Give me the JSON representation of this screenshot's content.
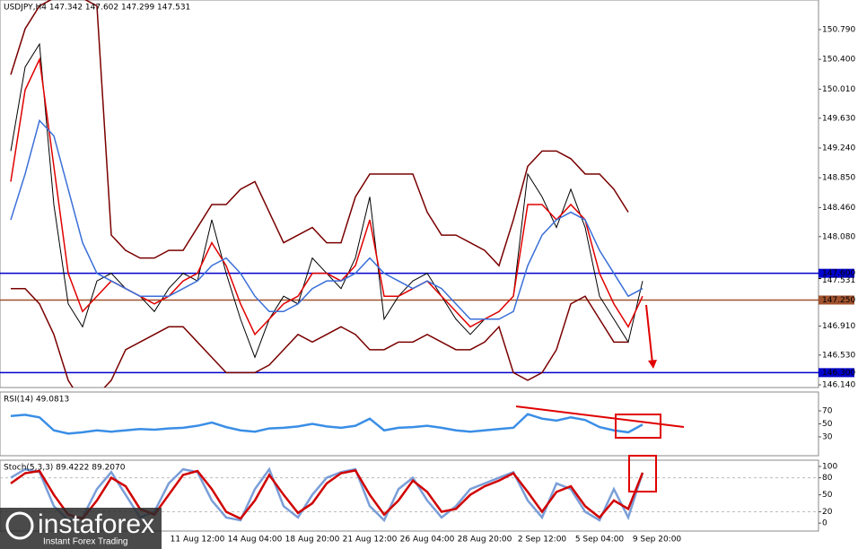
{
  "chart_data": [
    {
      "type": "line",
      "title": "USDJPY,H4  147.342 147.602 147.299 147.531",
      "categories": [
        null,
        null,
        null,
        null,
        null,
        null,
        null,
        null,
        null,
        null,
        null,
        null,
        null,
        "11 Aug 12:00",
        null,
        null,
        null,
        "14 Aug 04:00",
        null,
        null,
        null,
        "18 Aug 20:00",
        null,
        null,
        null,
        "21 Aug 12:00",
        null,
        null,
        null,
        "26 Aug 04:00",
        null,
        null,
        null,
        "28 Aug 20:00",
        null,
        null,
        null,
        "2 Sep 12:00",
        null,
        null,
        null,
        "5 Sep 04:00",
        null,
        null,
        null,
        "9 Sep 20:00"
      ],
      "series": [
        {
          "color": "#000000",
          "values": [
            149.2,
            150.3,
            150.6,
            148.5,
            147.2,
            146.9,
            147.5,
            147.6,
            147.4,
            147.3,
            147.1,
            147.4,
            147.6,
            147.5,
            148.3,
            147.6,
            147.0,
            146.5,
            147.0,
            147.3,
            147.2,
            147.8,
            147.6,
            147.4,
            147.8,
            148.6,
            147.0,
            147.3,
            147.5,
            147.6,
            147.3,
            147.0,
            146.8,
            147.0,
            147.1,
            147.3,
            148.9,
            148.6,
            148.2,
            148.7,
            148.2,
            147.3,
            147.0,
            146.7,
            147.5,
            null
          ]
        },
        {
          "color": "#7a0000",
          "values": [
            150.2,
            150.8,
            151.1,
            151.2,
            151.2,
            151.2,
            151.1,
            148.1,
            147.9,
            147.8,
            147.8,
            147.9,
            147.9,
            148.2,
            148.5,
            148.5,
            148.7,
            148.8,
            148.4,
            148.0,
            148.1,
            148.2,
            148.0,
            148.0,
            148.6,
            148.9,
            148.9,
            148.9,
            148.9,
            148.4,
            148.1,
            148.1,
            148.0,
            147.9,
            147.7,
            148.3,
            149.0,
            149.2,
            149.2,
            149.1,
            148.9,
            148.9,
            148.7,
            148.4,
            null,
            null
          ]
        },
        {
          "color": "#7a0000",
          "values": [
            147.4,
            147.4,
            147.2,
            146.8,
            146.2,
            145.9,
            146.0,
            146.2,
            146.6,
            146.7,
            146.8,
            146.9,
            146.9,
            146.7,
            146.5,
            146.3,
            146.3,
            146.3,
            146.4,
            146.6,
            146.8,
            146.7,
            146.8,
            146.9,
            146.8,
            146.6,
            146.6,
            146.7,
            146.7,
            146.8,
            146.7,
            146.6,
            146.6,
            146.7,
            146.9,
            146.3,
            146.2,
            146.3,
            146.6,
            147.2,
            147.3,
            147.0,
            146.7,
            146.7,
            null,
            null
          ]
        },
        {
          "color": "#e00000",
          "values": [
            148.8,
            150.0,
            150.4,
            149.0,
            147.6,
            147.1,
            147.3,
            147.5,
            147.4,
            147.3,
            147.2,
            147.3,
            147.5,
            147.6,
            148.0,
            147.7,
            147.2,
            146.8,
            147.0,
            147.2,
            147.3,
            147.6,
            147.6,
            147.5,
            147.7,
            148.3,
            147.3,
            147.3,
            147.4,
            147.5,
            147.3,
            147.1,
            146.9,
            147.0,
            147.1,
            147.3,
            148.5,
            148.5,
            148.3,
            148.5,
            148.3,
            147.6,
            147.2,
            146.9,
            147.3,
            null
          ]
        },
        {
          "color": "#3a6fd8",
          "values": [
            148.3,
            148.9,
            149.6,
            149.4,
            148.7,
            148.0,
            147.6,
            147.5,
            147.4,
            147.3,
            147.3,
            147.3,
            147.4,
            147.5,
            147.7,
            147.8,
            147.6,
            147.3,
            147.1,
            147.1,
            147.2,
            147.4,
            147.5,
            147.5,
            147.6,
            147.8,
            147.6,
            147.5,
            147.4,
            147.5,
            147.4,
            147.2,
            147.0,
            147.0,
            147.0,
            147.1,
            147.7,
            148.1,
            148.3,
            148.4,
            148.3,
            147.9,
            147.6,
            147.3,
            147.4,
            null
          ]
        }
      ],
      "ylim": [
        146.105,
        151.177
      ],
      "yticks": [
        {
          "value": 150.79,
          "label": "150.790"
        },
        {
          "value": 150.4,
          "label": "150.400"
        },
        {
          "value": 150.01,
          "label": "150.010"
        },
        {
          "value": 149.63,
          "label": "149.630"
        },
        {
          "value": 149.24,
          "label": "149.240"
        },
        {
          "value": 148.85,
          "label": "148.850"
        },
        {
          "value": 148.46,
          "label": "148.460"
        },
        {
          "value": 148.08,
          "label": "148.080"
        },
        {
          "value": 146.91,
          "label": "146.910"
        },
        {
          "value": 146.53,
          "label": "146.530"
        },
        {
          "value": 146.14,
          "label": "146.140"
        }
      ],
      "levels": [
        {
          "value": 147.6,
          "label": "147.600",
          "color": "#0000cc"
        },
        {
          "value": 147.25,
          "label": "147.250",
          "color": "#a0522d"
        },
        {
          "value": 146.3,
          "label": "146.300",
          "color": "#0000cc"
        }
      ],
      "current_price": {
        "value": 147.531,
        "label": "147.531"
      }
    },
    {
      "type": "line",
      "title": "RSI(14) 49.0813",
      "series": [
        {
          "color": "#3a8ee6",
          "values": [
            62,
            64,
            60,
            40,
            35,
            37,
            40,
            38,
            40,
            42,
            41,
            43,
            44,
            47,
            52,
            45,
            40,
            38,
            43,
            44,
            46,
            50,
            46,
            44,
            47,
            58,
            40,
            44,
            45,
            47,
            44,
            40,
            38,
            40,
            42,
            44,
            65,
            58,
            55,
            60,
            56,
            45,
            40,
            37,
            49,
            null
          ]
        }
      ],
      "ylim": [
        1,
        99
      ],
      "yticks": [
        70,
        50,
        30
      ]
    },
    {
      "type": "line",
      "title": "Stoch(5,3,3) 89.4222 89.2070",
      "series": [
        {
          "color": "#7a9ed8",
          "values": [
            80,
            95,
            90,
            30,
            5,
            10,
            60,
            90,
            50,
            10,
            20,
            70,
            95,
            90,
            40,
            10,
            5,
            60,
            95,
            30,
            10,
            50,
            80,
            90,
            95,
            30,
            5,
            60,
            80,
            40,
            10,
            30,
            60,
            70,
            80,
            90,
            40,
            10,
            70,
            60,
            20,
            5,
            60,
            10,
            89,
            null
          ]
        },
        {
          "color": "#d00000",
          "values": [
            70,
            88,
            92,
            50,
            15,
            8,
            40,
            80,
            65,
            25,
            15,
            50,
            85,
            92,
            60,
            20,
            8,
            40,
            85,
            50,
            18,
            35,
            70,
            88,
            93,
            50,
            15,
            40,
            75,
            55,
            20,
            25,
            50,
            65,
            75,
            88,
            55,
            20,
            55,
            65,
            30,
            10,
            40,
            25,
            89,
            null
          ]
        }
      ],
      "ylim": [
        -14,
        111
      ],
      "yticks": [
        100,
        80,
        50,
        20,
        0
      ]
    }
  ],
  "watermark": {
    "brand": "instaforex",
    "tagline": "Instant Forex Trading"
  }
}
